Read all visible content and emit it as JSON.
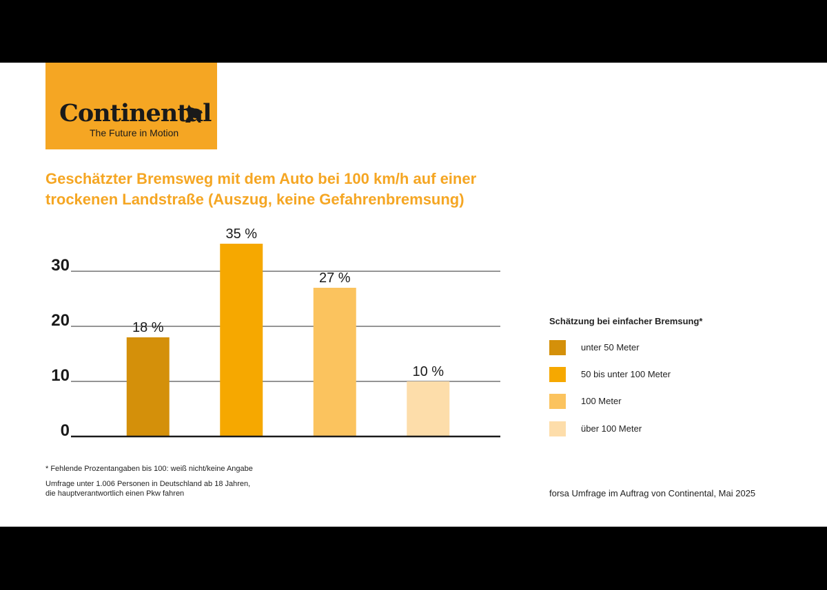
{
  "brand": {
    "name": "Continental",
    "tagline": "The Future in Motion",
    "color": "#f5a623",
    "icon": "horse-icon"
  },
  "header": {
    "title_line1": "Geschätzter Bremsweg mit dem Auto bei 100 km/h auf einer",
    "title_line2": "trockenen Landstraße (Auszug, keine Gefahrenbremsung)"
  },
  "legend": {
    "title": "Schätzung bei einfacher Bremsung*",
    "items": [
      {
        "label": "unter 50 Meter",
        "color": "#d4900a"
      },
      {
        "label": "50 bis unter 100 Meter",
        "color": "#f6a800"
      },
      {
        "label": "100 Meter",
        "color": "#fbc35e"
      },
      {
        "label": "über 100 Meter",
        "color": "#fdddaa"
      }
    ]
  },
  "footnotes": {
    "note": "* Fehlende Prozentangaben bis 100: weiß nicht/keine Angabe",
    "survey_line1": "Umfrage unter 1.006 Personen in Deutschland ab 18 Jahren,",
    "survey_line2": "die hauptverantwortlich einen Pkw fahren",
    "source": "forsa Umfrage im Auftrag von Continental, Mai 2025"
  },
  "chart_data": {
    "type": "bar",
    "categories": [
      "unter 50 Meter",
      "50 bis unter 100 Meter",
      "100 Meter",
      "über 100 Meter"
    ],
    "values": [
      18,
      35,
      27,
      10
    ],
    "value_labels": [
      "18 %",
      "35 %",
      "27 %",
      "10 %"
    ],
    "colors": [
      "#d4900a",
      "#f6a800",
      "#fbc35e",
      "#fdddaa"
    ],
    "title": "Geschätzter Bremsweg mit dem Auto bei 100 km/h auf einer trockenen Landstraße (Auszug, keine Gefahrenbremsung)",
    "xlabel": "",
    "ylabel": "",
    "ylim": [
      0,
      30
    ],
    "yticks": [
      0,
      10,
      20,
      30
    ],
    "grid": true,
    "legend_position": "right"
  }
}
